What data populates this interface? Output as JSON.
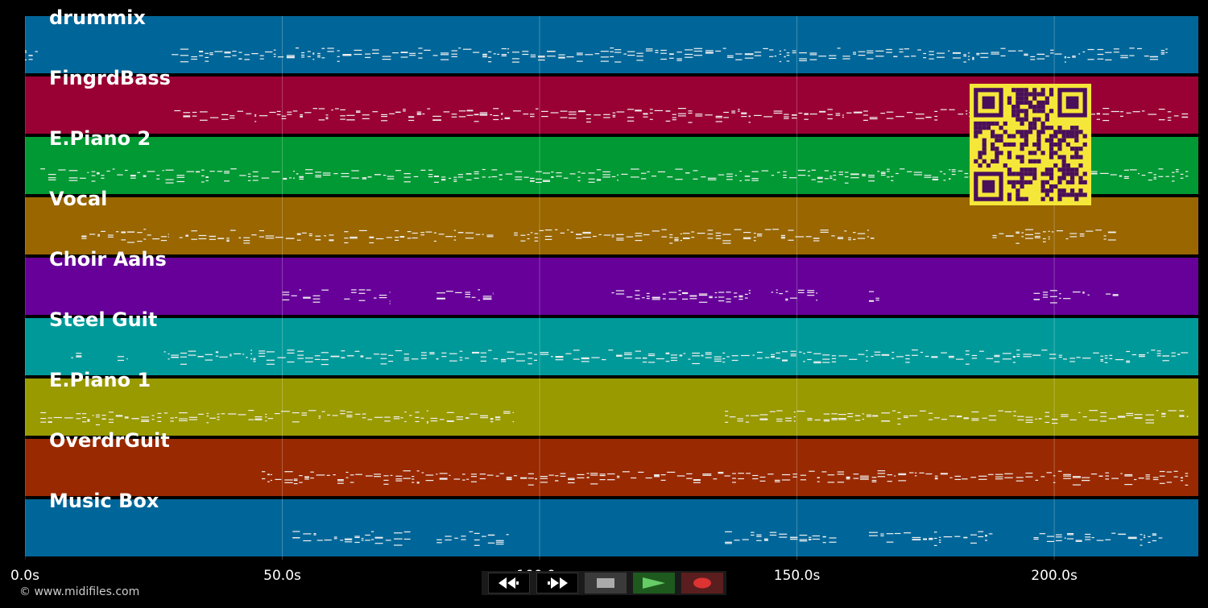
{
  "tracks": [
    {
      "name": "drummix",
      "color": "#006699"
    },
    {
      "name": "FingrdBass",
      "color": "#990033"
    },
    {
      "name": "E.Piano 2",
      "color": "#009933"
    },
    {
      "name": "Vocal",
      "color": "#996600"
    },
    {
      "name": "Choir Aahs",
      "color": "#660099"
    },
    {
      "name": "Steel Guit",
      "color": "#009999"
    },
    {
      "name": "E.Piano 1",
      "color": "#999900"
    },
    {
      "name": "OverdrGuit",
      "color": "#992900"
    },
    {
      "name": "Music Box",
      "color": "#006699"
    }
  ],
  "timeline": {
    "max_seconds": 228,
    "ticks": [
      {
        "seconds": 0,
        "label": "0.0s"
      },
      {
        "seconds": 50,
        "label": "50.0s"
      },
      {
        "seconds": 100,
        "label": "100.0s"
      },
      {
        "seconds": 150,
        "label": "150.0s"
      },
      {
        "seconds": 200,
        "label": "200.0s"
      }
    ]
  },
  "note_segments": [
    [
      [
        0,
        2.5
      ],
      [
        28.5,
        222
      ]
    ],
    [
      [
        29,
        226
      ]
    ],
    [
      [
        3,
        226
      ]
    ],
    [
      [
        11,
        28
      ],
      [
        30,
        60
      ],
      [
        62,
        91
      ],
      [
        95,
        165
      ],
      [
        188,
        212
      ]
    ],
    [
      [
        50,
        59
      ],
      [
        62,
        71
      ],
      [
        80,
        91
      ],
      [
        114,
        141
      ],
      [
        145,
        154
      ],
      [
        164,
        166
      ],
      [
        196,
        207
      ],
      [
        210,
        213
      ]
    ],
    [
      [
        9,
        11
      ],
      [
        18,
        20
      ],
      [
        27,
        226
      ]
    ],
    [
      [
        3,
        95
      ],
      [
        136,
        226
      ]
    ],
    [
      [
        46,
        226
      ]
    ],
    [
      [
        52,
        75
      ],
      [
        80,
        94
      ],
      [
        136,
        158
      ],
      [
        164,
        188
      ],
      [
        196,
        221
      ]
    ]
  ],
  "transport": {
    "rewind": "rewind-icon",
    "fast_forward": "fast-forward-icon",
    "stop": "stop-icon",
    "play": "play-icon",
    "record": "record-icon"
  },
  "copyright": "© www.midifiles.com"
}
